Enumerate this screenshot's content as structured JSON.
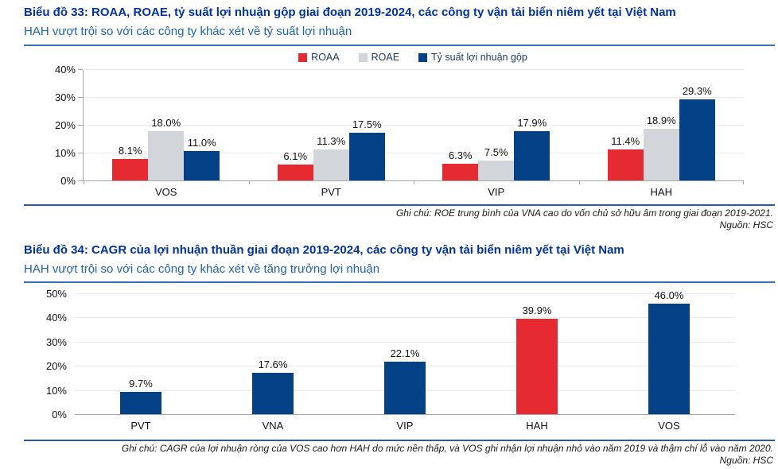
{
  "colors": {
    "title_navy": "#0033a0",
    "subtitle_blue": "#1f62ae",
    "bar_red": "#e62a32",
    "bar_gray": "#d2d6db",
    "bar_navy": "#044186",
    "rule_blue": "#3a70b2"
  },
  "chart33": {
    "title": "Biểu đồ 33: ROAA, ROAE, tỷ suất lợi nhuận gộp giai đoạn 2019-2024, các công ty vận tải biển niêm yết tại Việt Nam",
    "subtitle": "HAH vượt trội so với các công ty khác xét về tỷ suất lợi nhuận",
    "note": "Ghi chú: ROE trung bình của VNA cao do vốn chủ sở hữu âm trong giai đoạn 2019-2021.",
    "source": "Nguồn: HSC"
  },
  "chart34": {
    "title": "Biểu đồ 34: CAGR của lợi nhuận thuần giai đoạn 2019-2024, các công ty vận tải biển niêm yết tại Việt Nam",
    "subtitle": "HAH vượt trội so với các công ty khác xét về tăng trưởng lợi nhuận",
    "note": "Ghi chú: CAGR của lợi nhuận ròng của VOS cao hơn HAH do mức nền thấp, và VOS ghi nhận lợi nhuận nhỏ vào năm 2019 và thậm chí lỗ vào năm 2020.",
    "source": "Nguồn: HSC"
  },
  "chart_data": [
    {
      "type": "bar",
      "title": "ROAA, ROAE, tỷ suất lợi nhuận gộp giai đoạn 2019-2024",
      "categories": [
        "VOS",
        "PVT",
        "VIP",
        "HAH"
      ],
      "series": [
        {
          "name": "ROAA",
          "color": "#e62a32",
          "values": [
            8.1,
            6.1,
            6.3,
            11.4
          ]
        },
        {
          "name": "ROAE",
          "color": "#d2d6db",
          "values": [
            18.0,
            11.3,
            7.5,
            18.9
          ]
        },
        {
          "name": "Tỷ suất lợi nhuận gộp",
          "color": "#044186",
          "values": [
            11.0,
            17.5,
            17.9,
            29.3
          ]
        }
      ],
      "ylim": [
        0,
        40
      ],
      "yticks": [
        "0%",
        "10%",
        "20%",
        "30%",
        "40%"
      ],
      "value_suffix": "%",
      "grid": true,
      "legend_position": "top"
    },
    {
      "type": "bar",
      "title": "CAGR của lợi nhuận thuần giai đoạn 2019-2024",
      "categories": [
        "PVT",
        "VNA",
        "VIP",
        "HAH",
        "VOS"
      ],
      "series": [
        {
          "name": "CAGR",
          "color": "#044186",
          "colors": [
            "#044186",
            "#044186",
            "#044186",
            "#e62a32",
            "#044186"
          ],
          "values": [
            9.7,
            17.6,
            22.1,
            39.9,
            46.0
          ]
        }
      ],
      "ylim": [
        0,
        50
      ],
      "yticks": [
        "0%",
        "10%",
        "20%",
        "30%",
        "40%",
        "50%"
      ],
      "value_suffix": "%",
      "grid": true,
      "legend_position": "none"
    }
  ]
}
